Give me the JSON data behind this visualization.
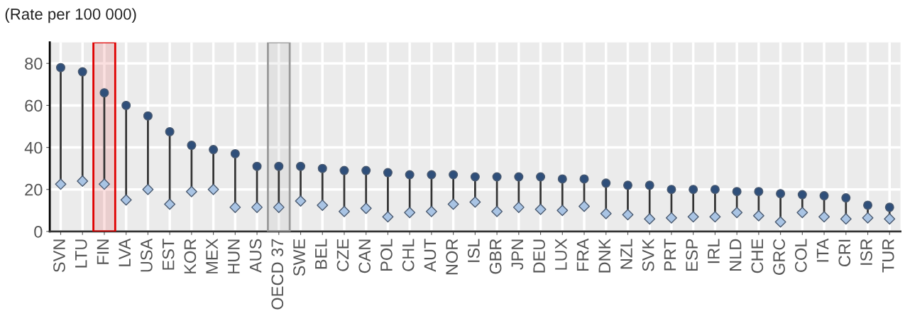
{
  "chart_data": {
    "type": "scatter",
    "ylabel": "(Rate per 100 000)",
    "categories": [
      "SVN",
      "LTU",
      "FIN",
      "LVA",
      "USA",
      "EST",
      "KOR",
      "MEX",
      "HUN",
      "AUS",
      "OECD 37",
      "SWE",
      "BEL",
      "CZE",
      "CAN",
      "POL",
      "CHL",
      "AUT",
      "NOR",
      "ISL",
      "GBR",
      "JPN",
      "DEU",
      "LUX",
      "FRA",
      "DNK",
      "NZL",
      "SVK",
      "PRT",
      "ESP",
      "IRL",
      "NLD",
      "CHE",
      "GRC",
      "COL",
      "ITA",
      "CRI",
      "ISR",
      "TUR"
    ],
    "series": [
      {
        "color": "#2f4f7a",
        "marker": "circle",
        "values": [
          78,
          76,
          66,
          60,
          55,
          47.5,
          41,
          39,
          37,
          31,
          31,
          31,
          30,
          29,
          29,
          28,
          27,
          27,
          27,
          26,
          26,
          26,
          26,
          25,
          25,
          23,
          22,
          22,
          20,
          20,
          20,
          19,
          19,
          18,
          17.5,
          17,
          16,
          12.5,
          11.5
        ]
      },
      {
        "color": "#a9c4e4",
        "marker": "diamond",
        "values": [
          22.5,
          24,
          22.5,
          15,
          20,
          13,
          19,
          20,
          11.5,
          11.5,
          11.5,
          14.5,
          12.5,
          9.5,
          11,
          7,
          9,
          9.5,
          13,
          14,
          9.5,
          11.5,
          10.5,
          10,
          12,
          8.5,
          8,
          6,
          6.5,
          7,
          7,
          9,
          7.5,
          4.5,
          9,
          7,
          6,
          6.5,
          6
        ]
      }
    ],
    "ylim": [
      0,
      90
    ],
    "yticks": [
      0,
      20,
      40,
      60,
      80
    ],
    "grid": true,
    "bands": [
      {
        "axis": "x",
        "from": "FIN",
        "to": "FIN",
        "color": "#e00000"
      },
      {
        "axis": "x",
        "from": "OECD 37",
        "to": "OECD 37",
        "color": "#999999"
      }
    ]
  }
}
